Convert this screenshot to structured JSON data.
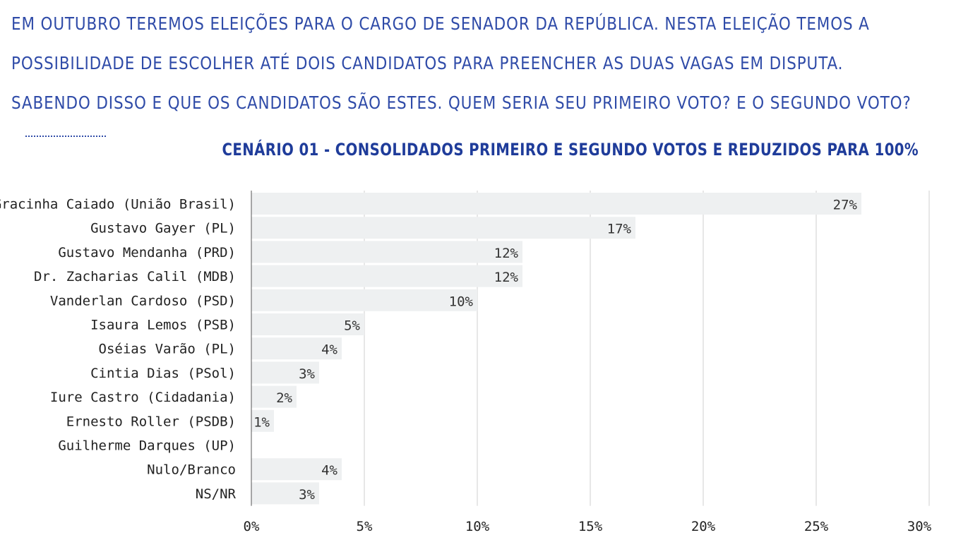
{
  "question": {
    "line1": "EM OUTUBRO TEREMOS ELEIÇÕES PARA O CARGO DE SENADOR DA REPÚBLICA. NESTA ELEIÇÃO TEMOS A",
    "line2": "POSSIBILIDADE DE ESCOLHER ATÉ DOIS CANDIDATOS PARA PREENCHER AS DUAS VAGAS EM DISPUTA.",
    "line3": "SABENDO DISSO E QUE OS CANDIDATOS SÃO ESTES. QUEM SERIA SEU PRIMEIRO VOTO? E O SEGUNDO VOTO?"
  },
  "colors": {
    "text": "#2f4ba8",
    "title": "#1f3c9a",
    "bar": "#eef0f1",
    "grid": "#cfcfcf"
  },
  "chart_data": {
    "type": "bar",
    "orientation": "horizontal",
    "title": "CENÁRIO 01 - CONSOLIDADOS PRIMEIRO E SEGUNDO VOTOS E REDUZIDOS PARA 100%",
    "categories": [
      "Gracinha Caiado (União Brasil)",
      "Gustavo Gayer (PL)",
      "Gustavo Mendanha (PRD)",
      "Dr. Zacharias Calil (MDB)",
      "Vanderlan Cardoso (PSD)",
      "Isaura Lemos (PSB)",
      "Oséias Varão (PL)",
      "Cintia Dias (PSol)",
      "Iure Castro (Cidadania)",
      "Ernesto Roller (PSDB)",
      "Guilherme Darques (UP)",
      "Nulo/Branco",
      "NS/NR"
    ],
    "values": [
      27,
      17,
      12,
      12,
      10,
      5,
      4,
      3,
      2,
      1,
      0,
      4,
      3
    ],
    "value_labels": [
      "27%",
      "17%",
      "12%",
      "12%",
      "10%",
      "5%",
      "4%",
      "3%",
      "2%",
      "1%",
      "",
      "4%",
      "3%"
    ],
    "xlim": [
      0,
      30
    ],
    "ticks": [
      0,
      5,
      10,
      15,
      20,
      25,
      30
    ],
    "tick_labels": [
      "0%",
      "5%",
      "10%",
      "15%",
      "20%",
      "25%",
      "30%"
    ],
    "grid": true,
    "legend": "none"
  }
}
